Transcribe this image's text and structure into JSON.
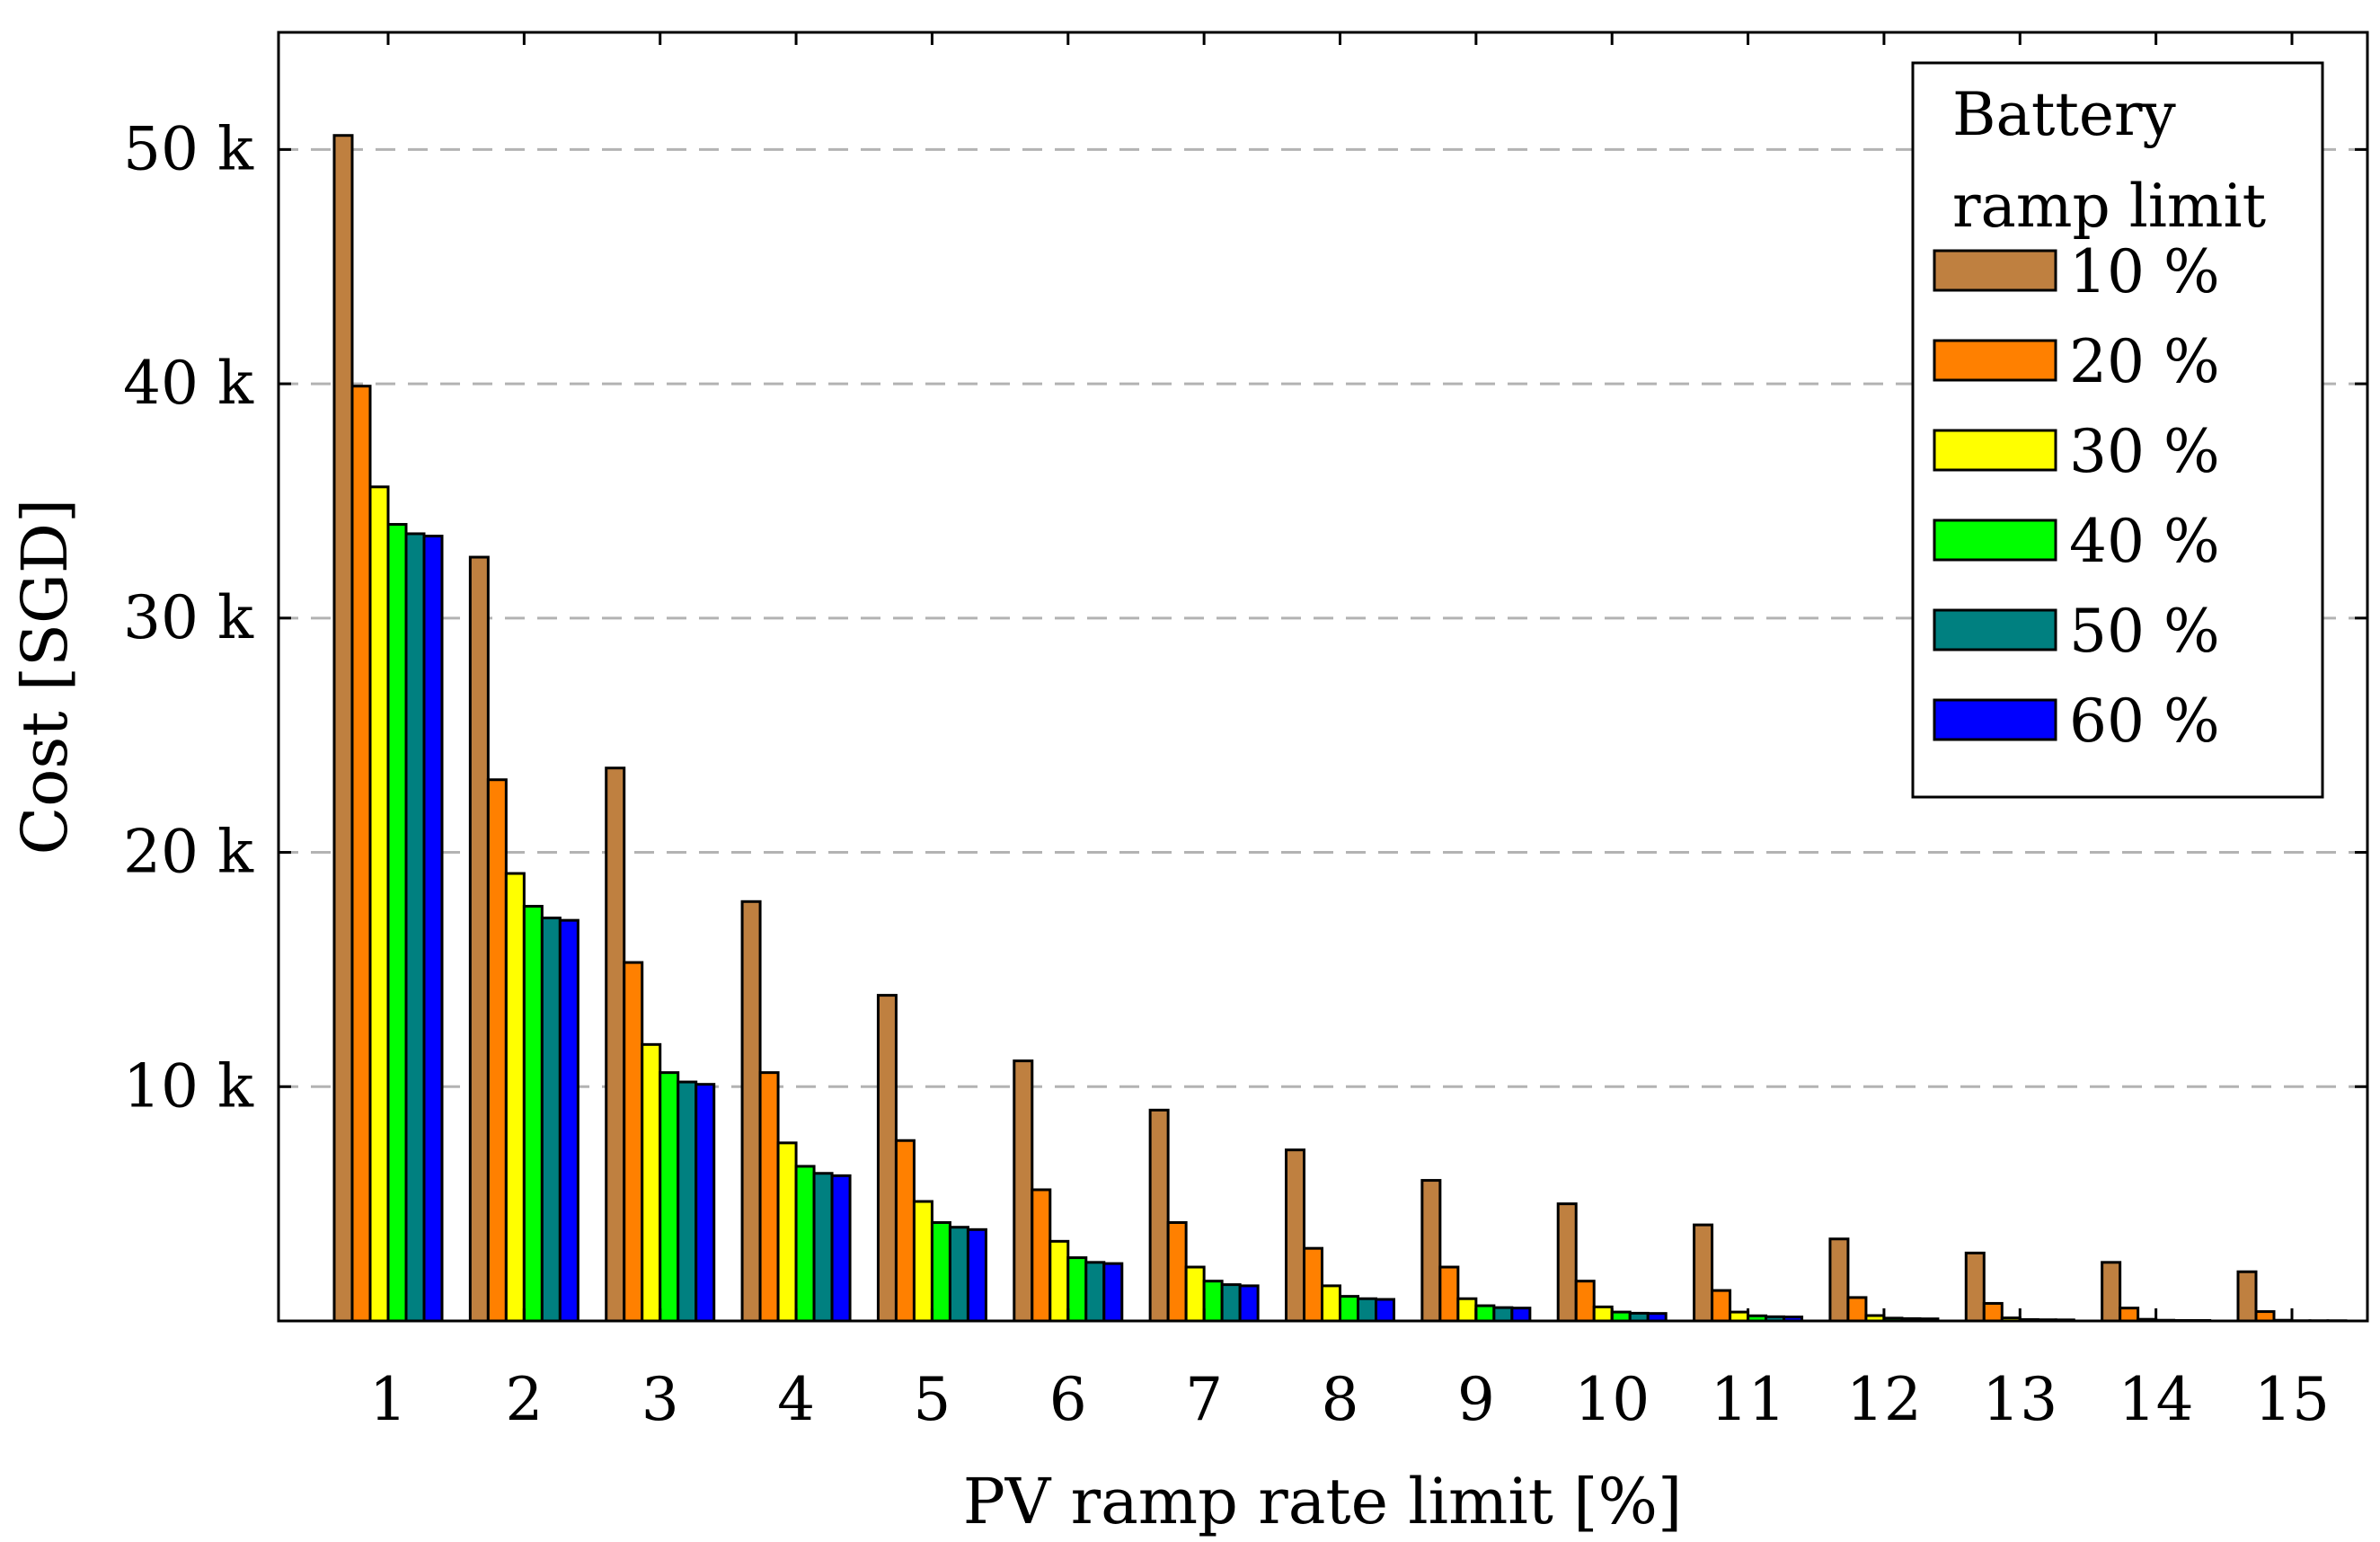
{
  "chart_data": {
    "type": "bar",
    "title": "",
    "xlabel": "PV ramp rate limit [%]",
    "ylabel": "Cost [SGD]",
    "ylim": [
      0,
      55000
    ],
    "yticks": [
      10000,
      20000,
      30000,
      40000,
      50000
    ],
    "ytick_labels": [
      "10 k",
      "20 k",
      "30 k",
      "40 k",
      "50 k"
    ],
    "grid": "horizontal dashed",
    "categories": [
      "1",
      "2",
      "3",
      "4",
      "5",
      "6",
      "7",
      "8",
      "9",
      "10",
      "11",
      "12",
      "13",
      "14",
      "15"
    ],
    "legend": {
      "title_lines": [
        "Battery",
        "ramp limit"
      ],
      "placement": "top-right"
    },
    "series": [
      {
        "name": "10 %",
        "color": "#bf8040",
        "values": [
          50600,
          32600,
          23600,
          17900,
          13900,
          11100,
          9000,
          7300,
          6000,
          5000,
          4100,
          3500,
          2900,
          2500,
          2100
        ]
      },
      {
        "name": "20 %",
        "color": "#ff8000",
        "values": [
          39900,
          23100,
          15300,
          10600,
          7700,
          5600,
          4200,
          3100,
          2300,
          1700,
          1300,
          1000,
          750,
          550,
          400
        ]
      },
      {
        "name": "30 %",
        "color": "#ffff00",
        "values": [
          35600,
          19100,
          11800,
          7600,
          5100,
          3400,
          2300,
          1500,
          950,
          600,
          380,
          230,
          130,
          70,
          30
        ]
      },
      {
        "name": "40 %",
        "color": "#00ff00",
        "values": [
          34000,
          17700,
          10600,
          6600,
          4200,
          2700,
          1700,
          1050,
          650,
          380,
          220,
          120,
          60,
          30,
          10
        ]
      },
      {
        "name": "50 %",
        "color": "#008080",
        "values": [
          33600,
          17200,
          10200,
          6300,
          4000,
          2500,
          1550,
          950,
          570,
          330,
          180,
          100,
          50,
          20,
          10
        ]
      },
      {
        "name": "60 %",
        "color": "#0000ff",
        "values": [
          33500,
          17100,
          10100,
          6200,
          3900,
          2450,
          1500,
          920,
          550,
          320,
          170,
          90,
          45,
          20,
          10
        ]
      }
    ]
  }
}
